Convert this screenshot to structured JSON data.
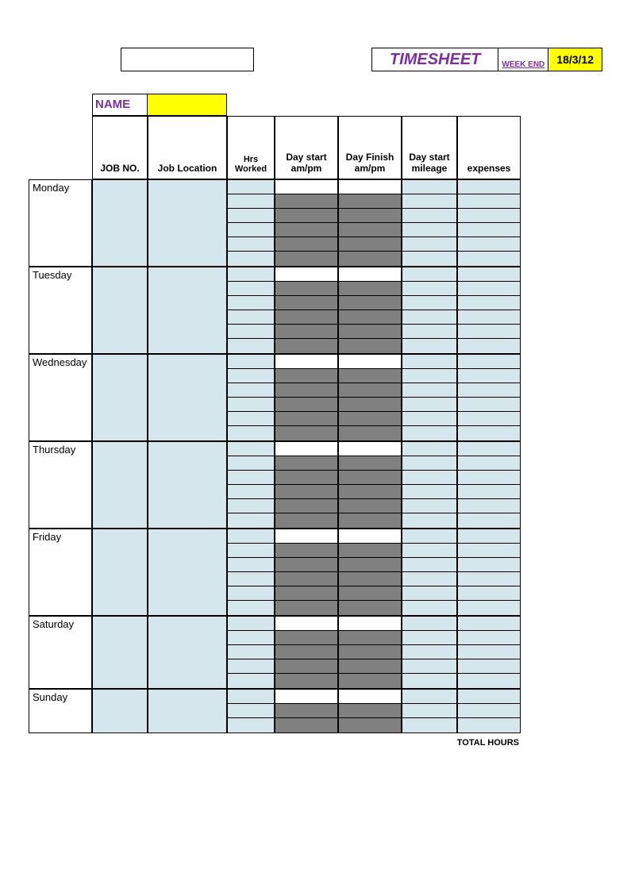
{
  "type": "table",
  "header": {
    "title": "TIMESHEET",
    "week_end_label": "WEEK END",
    "week_end_date": "18/3/12",
    "name_label": "NAME",
    "name_value": ""
  },
  "columns": [
    {
      "label": "JOB NO."
    },
    {
      "label": "Job Location"
    },
    {
      "label": "Hrs Worked"
    },
    {
      "label": "Day start am/pm"
    },
    {
      "label": "Day Finish am/pm"
    },
    {
      "label": "Day start mileage"
    },
    {
      "label": "expenses"
    }
  ],
  "days": [
    {
      "name": "Monday",
      "sub_rows": 6
    },
    {
      "name": "Tuesday",
      "sub_rows": 6
    },
    {
      "name": "Wednesday",
      "sub_rows": 6
    },
    {
      "name": "Thursday",
      "sub_rows": 6
    },
    {
      "name": "Friday",
      "sub_rows": 6
    },
    {
      "name": "Saturday",
      "sub_rows": 5
    },
    {
      "name": "Sunday",
      "sub_rows": 3
    }
  ],
  "footer": {
    "total_hours_label": "TOTAL HOURS"
  },
  "colors": {
    "highlight": "#ffff00",
    "accent_text": "#7c2fa0",
    "cell_fill": "#d6e6ed",
    "gray_fill": "#808080",
    "border": "#000000",
    "background": "#ffffff"
  },
  "fonts": {
    "base_family": "Arial",
    "title_size_pt": 15,
    "header_size_pt": 9,
    "day_size_pt": 10
  }
}
